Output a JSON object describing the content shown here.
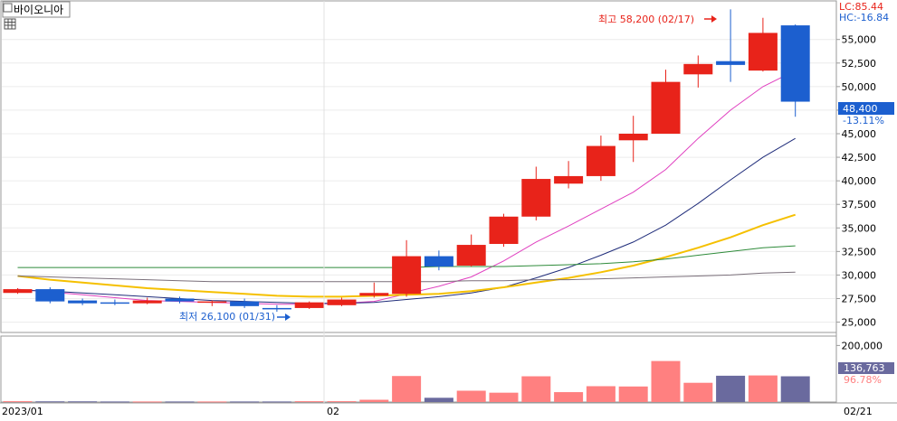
{
  "header": {
    "stock_name": "바이오니아",
    "lc_label": "LC:85.44",
    "hc_label": "HC:-16.84"
  },
  "colors": {
    "up": "#e8231a",
    "down": "#1c5fcf",
    "ma5": "#e040c0",
    "ma20": "#1f2c7a",
    "ma60": "#f5c000",
    "ma120": "#2e8b3a",
    "ma240": "#7a6f7a",
    "vol_up": "#ff8080",
    "vol_down": "#6a6a9e"
  },
  "chart_data": {
    "type": "candlestick",
    "price_ylim": [
      24000,
      59000
    ],
    "volume_ylim": [
      0,
      230000
    ],
    "price_ticks": [
      "25,000",
      "27,500",
      "30,000",
      "32,500",
      "35,000",
      "37,500",
      "40,000",
      "42,500",
      "45,000",
      "47,500",
      "50,000",
      "52,500",
      "55,000"
    ],
    "volume_ticks": [
      "200,000"
    ],
    "x_labels": [
      "2023/01",
      "02",
      "02/21"
    ],
    "current_price": "48,400",
    "change_pct": "-13.11%",
    "current_volume": "136,763",
    "volume_ratio": "96.78%",
    "high_annotation": "최고 58,200 (02/17)",
    "low_annotation": "최저 26,100 (01/31)",
    "candles": [
      {
        "o": 28100,
        "h": 28600,
        "l": 28000,
        "c": 28500,
        "v": 3000
      },
      {
        "o": 28500,
        "h": 28700,
        "l": 27000,
        "c": 27200,
        "v": 2500
      },
      {
        "o": 27300,
        "h": 27500,
        "l": 26800,
        "c": 27000,
        "v": 2500
      },
      {
        "o": 27100,
        "h": 27400,
        "l": 26800,
        "c": 27000,
        "v": 2000
      },
      {
        "o": 27000,
        "h": 27600,
        "l": 26900,
        "c": 27300,
        "v": 2000
      },
      {
        "o": 27500,
        "h": 27700,
        "l": 27000,
        "c": 27200,
        "v": 2000
      },
      {
        "o": 27100,
        "h": 27300,
        "l": 26700,
        "c": 27200,
        "v": 2000
      },
      {
        "o": 27200,
        "h": 27500,
        "l": 26500,
        "c": 26700,
        "v": 2000
      },
      {
        "o": 26500,
        "h": 26800,
        "l": 26100,
        "c": 26400,
        "v": 2000
      },
      {
        "o": 26500,
        "h": 27200,
        "l": 26400,
        "c": 27100,
        "v": 3000
      },
      {
        "o": 26800,
        "h": 27600,
        "l": 26700,
        "c": 27400,
        "v": 3000
      },
      {
        "o": 27800,
        "h": 29200,
        "l": 27600,
        "c": 28100,
        "v": 8000
      },
      {
        "o": 28000,
        "h": 33700,
        "l": 27700,
        "c": 32000,
        "v": 92000
      },
      {
        "o": 32000,
        "h": 32600,
        "l": 30500,
        "c": 30900,
        "v": 15000
      },
      {
        "o": 31000,
        "h": 34300,
        "l": 30900,
        "c": 33200,
        "v": 40000
      },
      {
        "o": 33300,
        "h": 36500,
        "l": 33000,
        "c": 36200,
        "v": 33000
      },
      {
        "o": 36200,
        "h": 41500,
        "l": 35800,
        "c": 40200,
        "v": 91000
      },
      {
        "o": 39700,
        "h": 42100,
        "l": 39200,
        "c": 40500,
        "v": 35000
      },
      {
        "o": 40500,
        "h": 44800,
        "l": 40000,
        "c": 43700,
        "v": 56000
      },
      {
        "o": 44300,
        "h": 46900,
        "l": 42000,
        "c": 45000,
        "v": 55000
      },
      {
        "o": 45000,
        "h": 51800,
        "l": 45000,
        "c": 50500,
        "v": 145000
      },
      {
        "o": 51300,
        "h": 53300,
        "l": 49900,
        "c": 52400,
        "v": 68000
      },
      {
        "o": 52700,
        "h": 58200,
        "l": 50500,
        "c": 52300,
        "v": 93000
      },
      {
        "o": 51700,
        "h": 57300,
        "l": 51600,
        "c": 55700,
        "v": 94000
      },
      {
        "o": 56500,
        "h": 56600,
        "l": 46800,
        "c": 48400,
        "v": 91000
      }
    ],
    "moving_averages": [
      {
        "key": "ma5",
        "values": [
          28500,
          28200,
          27900,
          27600,
          27300,
          27200,
          27100,
          27000,
          26900,
          26900,
          27000,
          27200,
          28000,
          28800,
          29800,
          31500,
          33500,
          35200,
          37000,
          38800,
          41200,
          44500,
          47500,
          50000,
          51700
        ]
      },
      {
        "key": "ma20",
        "values": [
          28400,
          28300,
          28100,
          27900,
          27700,
          27500,
          27300,
          27200,
          27100,
          27000,
          27000,
          27100,
          27400,
          27700,
          28100,
          28700,
          29700,
          30800,
          32100,
          33500,
          35300,
          37600,
          40100,
          42500,
          44500
        ]
      },
      {
        "key": "ma60",
        "values": [
          29900,
          29500,
          29200,
          28900,
          28600,
          28400,
          28200,
          28000,
          27800,
          27700,
          27700,
          27800,
          27900,
          28000,
          28300,
          28700,
          29200,
          29700,
          30300,
          31000,
          31900,
          32900,
          34000,
          35300,
          36400
        ]
      },
      {
        "key": "ma120",
        "values": [
          30800,
          30800,
          30800,
          30800,
          30800,
          30800,
          30800,
          30800,
          30800,
          30800,
          30800,
          30800,
          30800,
          30900,
          30900,
          30900,
          31000,
          31100,
          31200,
          31400,
          31700,
          32100,
          32500,
          32900,
          33100
        ]
      },
      {
        "key": "ma240",
        "values": [
          29900,
          29800,
          29700,
          29600,
          29500,
          29400,
          29300,
          29300,
          29300,
          29300,
          29300,
          29300,
          29300,
          29300,
          29400,
          29400,
          29500,
          29500,
          29600,
          29700,
          29800,
          29900,
          30000,
          30200,
          30300
        ]
      }
    ]
  }
}
